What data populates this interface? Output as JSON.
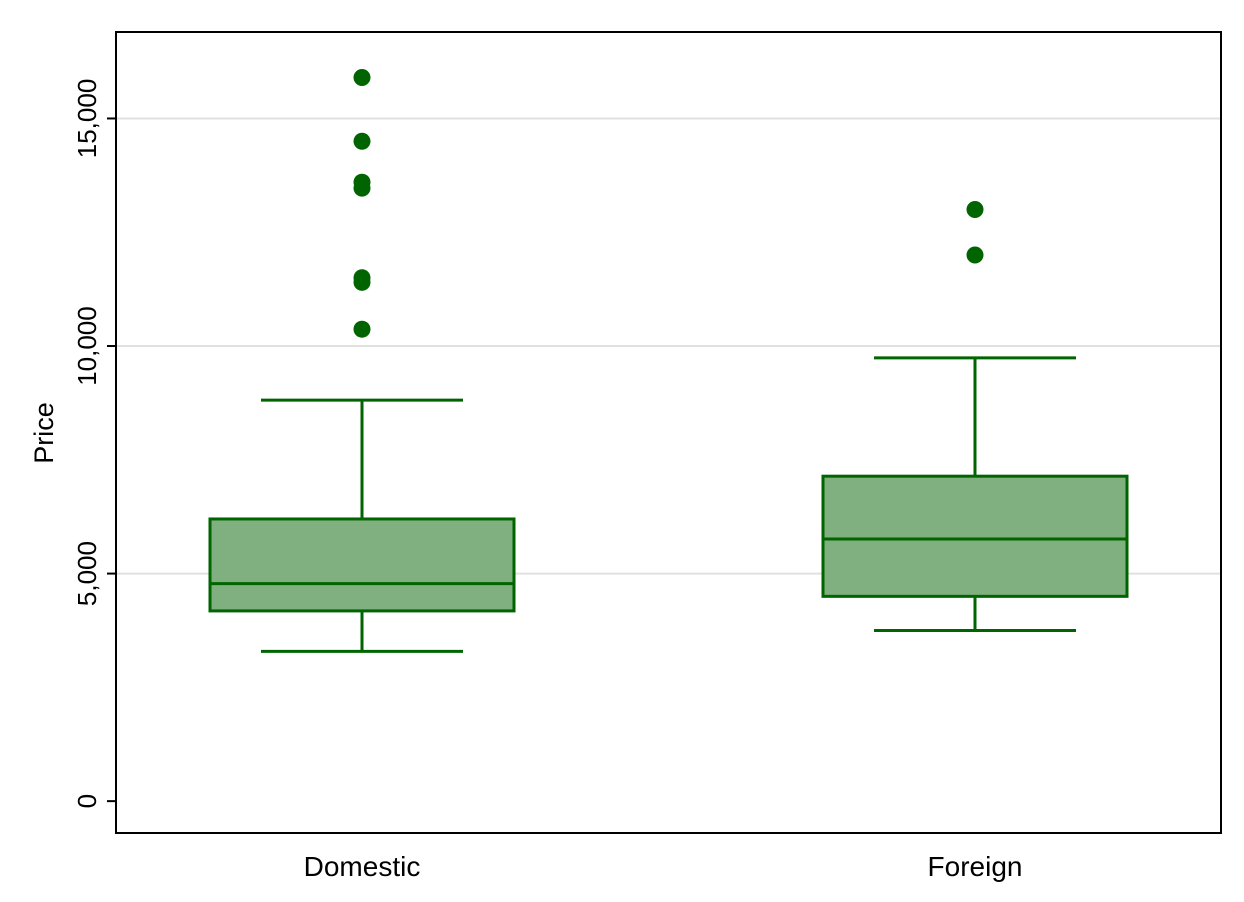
{
  "chart_data": {
    "type": "box",
    "title": "",
    "xlabel": "",
    "ylabel": "Price",
    "ylim": [
      -700,
      16900
    ],
    "y_ticks": [
      0,
      5000,
      10000,
      15000
    ],
    "y_tick_labels": [
      "0",
      "5,000",
      "10,000",
      "15,000"
    ],
    "grid": "horizontal",
    "colors": {
      "fill": "#80b080",
      "stroke": "#006400",
      "grid": "#e0e0e0"
    },
    "categories": [
      "Domestic",
      "Foreign"
    ],
    "boxes": [
      {
        "category": "Domestic",
        "whisker_low": 3290,
        "q1": 4180,
        "median": 4780,
        "q3": 6200,
        "whisker_high": 8810,
        "outliers": [
          10370,
          11400,
          11500,
          13470,
          13600,
          14500,
          15900
        ]
      },
      {
        "category": "Foreign",
        "whisker_low": 3750,
        "q1": 4500,
        "median": 5760,
        "q3": 7140,
        "whisker_high": 9740,
        "outliers": [
          12000,
          13000
        ]
      }
    ]
  }
}
